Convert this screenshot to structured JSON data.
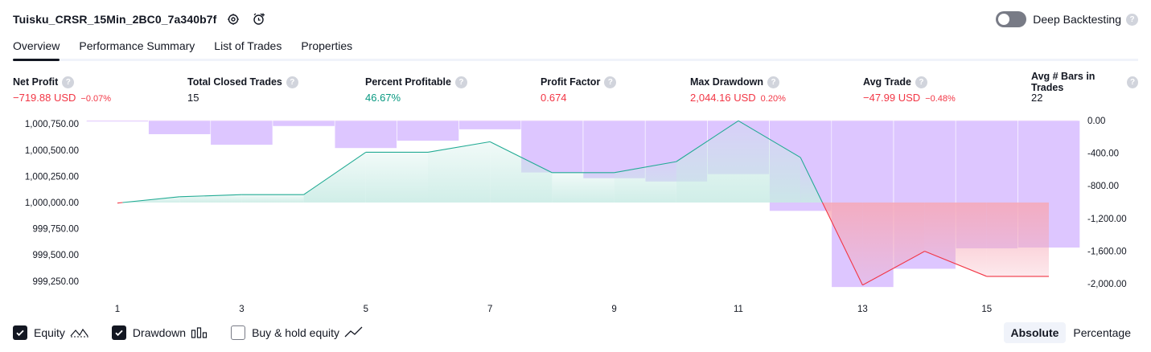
{
  "header": {
    "strategy_name": "Tuisku_CRSR_15Min_2BC0_7a340b7f",
    "icons": [
      "settings-icon",
      "add-alert-icon"
    ],
    "deep_backtesting_label": "Deep Backtesting",
    "deep_backtesting_enabled": false,
    "help_glyph": "?"
  },
  "tabs": [
    {
      "label": "Overview",
      "active": true
    },
    {
      "label": "Performance Summary",
      "active": false
    },
    {
      "label": "List of Trades",
      "active": false
    },
    {
      "label": "Properties",
      "active": false
    }
  ],
  "stats": [
    {
      "label": "Net Profit",
      "value": "−719.88 USD",
      "pct": "−0.07%",
      "tone": "neg"
    },
    {
      "label": "Total Closed Trades",
      "value": "15",
      "pct": "",
      "tone": "neu"
    },
    {
      "label": "Percent Profitable",
      "value": "46.67%",
      "pct": "",
      "tone": "pos"
    },
    {
      "label": "Profit Factor",
      "value": "0.674",
      "pct": "",
      "tone": "neg"
    },
    {
      "label": "Max Drawdown",
      "value": "2,044.16 USD",
      "pct": "0.20%",
      "tone": "neg"
    },
    {
      "label": "Avg Trade",
      "value": "−47.99 USD",
      "pct": "−0.48%",
      "tone": "neg"
    },
    {
      "label": "Avg # Bars in Trades",
      "value": "22",
      "pct": "",
      "tone": "neu"
    }
  ],
  "chart_data": {
    "type": "line",
    "x_ticks": [
      1,
      3,
      5,
      7,
      9,
      11,
      13,
      15
    ],
    "left_axis": {
      "ticks": [
        "1,000,750.00",
        "1,000,500.00",
        "1,000,250.00",
        "1,000,000.00",
        "999,750.00",
        "999,500.00",
        "999,250.00"
      ],
      "tick_values": [
        1000750,
        1000500,
        1000250,
        1000000,
        999750,
        999500,
        999250
      ]
    },
    "right_axis": {
      "ticks": [
        "0.00",
        "-400.00",
        "-800.00",
        "-1,200.00",
        "-1,600.00",
        "-2,000.00"
      ],
      "tick_values": [
        0,
        -400,
        -800,
        -1200,
        -1600,
        -2000
      ]
    },
    "series": [
      {
        "name": "Equity",
        "axis": "left",
        "x": [
          1,
          2,
          3,
          4,
          5,
          6,
          7,
          8,
          9,
          10,
          11,
          12,
          13,
          14,
          15,
          16
        ],
        "values": [
          999995,
          1000055,
          1000075,
          1000075,
          1000480,
          1000480,
          1000580,
          1000285,
          1000285,
          1000390,
          1000780,
          1000430,
          999212,
          999535,
          999295,
          999295
        ]
      },
      {
        "name": "Drawdown",
        "axis": "right",
        "type": "bar",
        "x": [
          1,
          2,
          3,
          4,
          5,
          6,
          7,
          8,
          9,
          10,
          11,
          12,
          13,
          14,
          15,
          16
        ],
        "values": [
          -15,
          -170,
          -300,
          -70,
          -340,
          -250,
          -110,
          -640,
          -710,
          -750,
          -660,
          -1110,
          -2044,
          -1820,
          -1570,
          -1560
        ]
      }
    ],
    "colors": {
      "equity_up": "#22ab94",
      "equity_down": "#f23645",
      "fill_up": "#c8ebe4",
      "fill_down": "#f7a8b6",
      "drawdown": "#d1b3ff"
    }
  },
  "legend": [
    {
      "label": "Equity",
      "checked": true,
      "icon": "equity-line-icon"
    },
    {
      "label": "Drawdown",
      "checked": true,
      "icon": "drawdown-bars-icon"
    },
    {
      "label": "Buy & hold equity",
      "checked": false,
      "icon": "buy-hold-line-icon"
    }
  ],
  "modes": [
    {
      "label": "Absolute",
      "active": true
    },
    {
      "label": "Percentage",
      "active": false
    }
  ]
}
